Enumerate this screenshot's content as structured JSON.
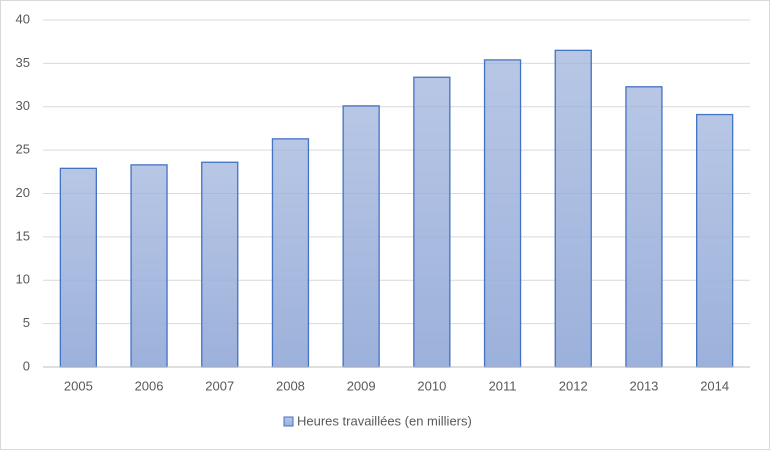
{
  "chart_data": {
    "type": "bar",
    "categories": [
      "2005",
      "2006",
      "2007",
      "2008",
      "2009",
      "2010",
      "2011",
      "2012",
      "2013",
      "2014"
    ],
    "series": [
      {
        "name": "Heures travaillées (en milliers)",
        "color": "#9cb1db",
        "edge_color": "#4472c4",
        "values": [
          22.9,
          23.3,
          23.6,
          26.3,
          30.1,
          33.4,
          35.4,
          36.5,
          32.3,
          29.1
        ]
      }
    ],
    "ylim": [
      0,
      40
    ],
    "yticks": [
      0,
      5,
      10,
      15,
      20,
      25,
      30,
      35,
      40
    ],
    "grid": true,
    "legend": "bottom"
  }
}
